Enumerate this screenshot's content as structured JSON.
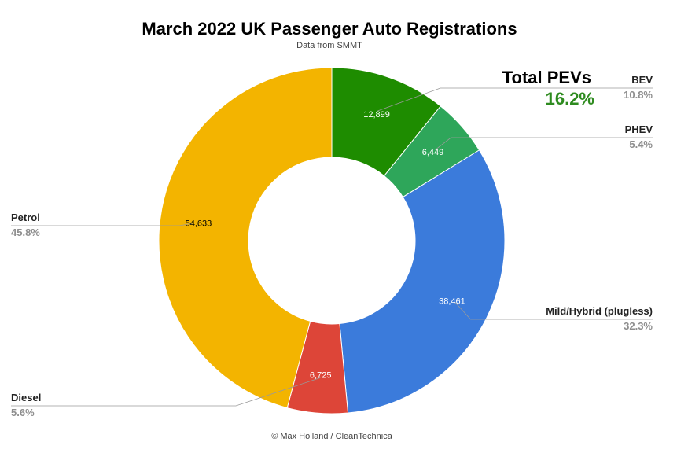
{
  "chart_data": {
    "type": "pie",
    "title": "March 2022 UK Passenger Auto Registrations",
    "subtitle": "Data from SMMT",
    "credit": "© Max Holland / CleanTechnica",
    "slices": [
      {
        "name": "BEV",
        "value": 12899,
        "value_label": "12,899",
        "percent": "10.8%",
        "color": "#1e8c00"
      },
      {
        "name": "PHEV",
        "value": 6449,
        "value_label": "6,449",
        "percent": "5.4%",
        "color": "#2ea65a"
      },
      {
        "name": "Mild/Hybrid (plugless)",
        "value": 38461,
        "value_label": "38,461",
        "percent": "32.3%",
        "color": "#3b7bdb"
      },
      {
        "name": "Diesel",
        "value": 6725,
        "value_label": "6,725",
        "percent": "5.6%",
        "color": "#dd4538"
      },
      {
        "name": "Petrol",
        "value": 54633,
        "value_label": "54,633",
        "percent": "45.8%",
        "color": "#f3b400"
      }
    ],
    "annotation": {
      "title": "Total PEVs",
      "value": "16.2%",
      "value_color": "#2e8b1f"
    },
    "legend_placement": "outside labels with leader lines"
  }
}
